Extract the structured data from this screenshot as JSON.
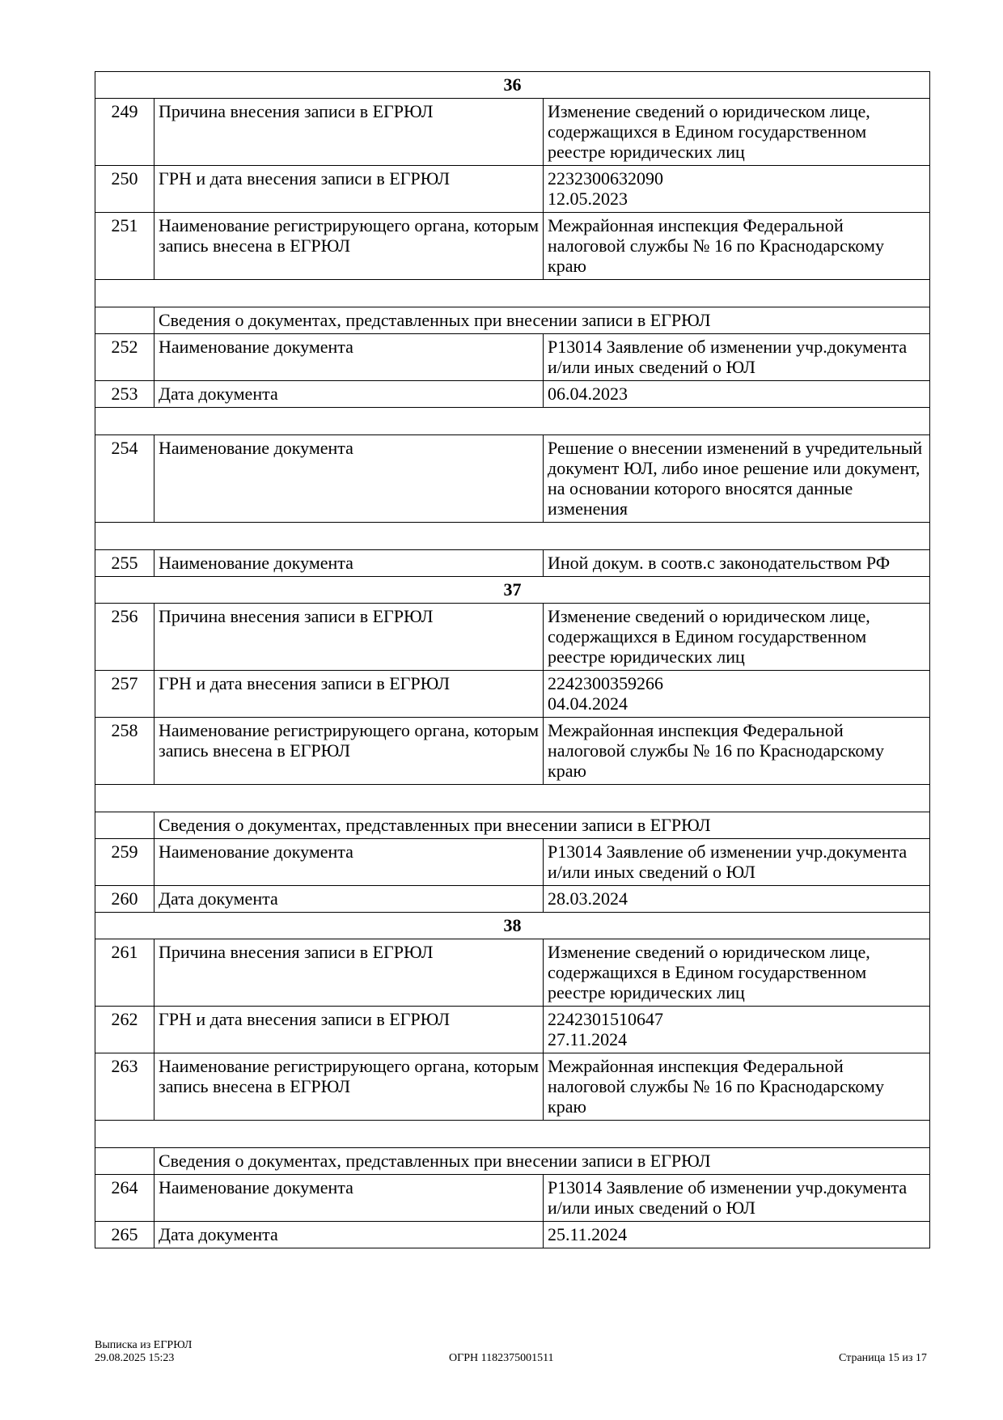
{
  "groups": [
    {
      "title": "36",
      "rows": [
        {
          "type": "row",
          "num": "249",
          "label": "Причина внесения записи в ЕГРЮЛ",
          "value": "Изменение сведений о юридическом лице, содержащихся в Едином государственном реестре юридических лиц"
        },
        {
          "type": "row",
          "num": "250",
          "label": "ГРН и дата внесения записи в ЕГРЮЛ",
          "value": "2232300632090\n12.05.2023"
        },
        {
          "type": "row",
          "num": "251",
          "label": "Наименование регистрирующего органа, которым запись внесена в ЕГРЮЛ",
          "value": "Межрайонная инспекция Федеральной налоговой службы № 16 по Краснодарскому краю"
        },
        {
          "type": "blank"
        },
        {
          "type": "section",
          "label": "Сведения о документах, представленных при внесении записи в ЕГРЮЛ"
        },
        {
          "type": "row",
          "num": "252",
          "label": "Наименование документа",
          "value": "Р13014 Заявление об изменении учр.документа и/или иных сведений о ЮЛ"
        },
        {
          "type": "row",
          "num": "253",
          "label": "Дата документа",
          "value": "06.04.2023"
        },
        {
          "type": "blank"
        },
        {
          "type": "row",
          "num": "254",
          "label": "Наименование документа",
          "value": "Решение о внесении изменений в учредительный документ ЮЛ, либо иное решение или документ, на основании которого вносятся данные изменения"
        },
        {
          "type": "blank"
        },
        {
          "type": "row",
          "num": "255",
          "label": "Наименование документа",
          "value": "Иной докум. в соотв.с законодательством РФ"
        }
      ]
    },
    {
      "title": "37",
      "rows": [
        {
          "type": "row",
          "num": "256",
          "label": "Причина внесения записи в ЕГРЮЛ",
          "value": "Изменение сведений о юридическом лице, содержащихся в Едином государственном реестре юридических лиц"
        },
        {
          "type": "row",
          "num": "257",
          "label": "ГРН и дата внесения записи в ЕГРЮЛ",
          "value": "2242300359266\n04.04.2024"
        },
        {
          "type": "row",
          "num": "258",
          "label": "Наименование регистрирующего органа, которым запись внесена в ЕГРЮЛ",
          "value": "Межрайонная инспекция Федеральной налоговой службы № 16 по Краснодарскому краю"
        },
        {
          "type": "blank"
        },
        {
          "type": "section",
          "label": "Сведения о документах, представленных при внесении записи в ЕГРЮЛ"
        },
        {
          "type": "row",
          "num": "259",
          "label": "Наименование документа",
          "value": "Р13014 Заявление об изменении учр.документа и/или иных сведений о ЮЛ"
        },
        {
          "type": "row",
          "num": "260",
          "label": "Дата документа",
          "value": "28.03.2024"
        }
      ]
    },
    {
      "title": "38",
      "rows": [
        {
          "type": "row",
          "num": "261",
          "label": "Причина внесения записи в ЕГРЮЛ",
          "value": "Изменение сведений о юридическом лице, содержащихся в Едином государственном реестре юридических лиц"
        },
        {
          "type": "row",
          "num": "262",
          "label": "ГРН и дата внесения записи в ЕГРЮЛ",
          "value": "2242301510647\n27.11.2024"
        },
        {
          "type": "row",
          "num": "263",
          "label": "Наименование регистрирующего органа, которым запись внесена в ЕГРЮЛ",
          "value": "Межрайонная инспекция Федеральной налоговой службы № 16 по Краснодарскому краю"
        },
        {
          "type": "blank"
        },
        {
          "type": "section",
          "label": "Сведения о документах, представленных при внесении записи в ЕГРЮЛ"
        },
        {
          "type": "row",
          "num": "264",
          "label": "Наименование документа",
          "value": "Р13014 Заявление об изменении учр.документа и/или иных сведений о ЮЛ"
        },
        {
          "type": "row",
          "num": "265",
          "label": "Дата документа",
          "value": "25.11.2024"
        }
      ]
    }
  ],
  "footer": {
    "title": "Выписка из ЕГРЮЛ",
    "datetime": "29.08.2025 15:23",
    "ogrn": "ОГРН 1182375001511",
    "page": "Страница 15 из 17"
  }
}
